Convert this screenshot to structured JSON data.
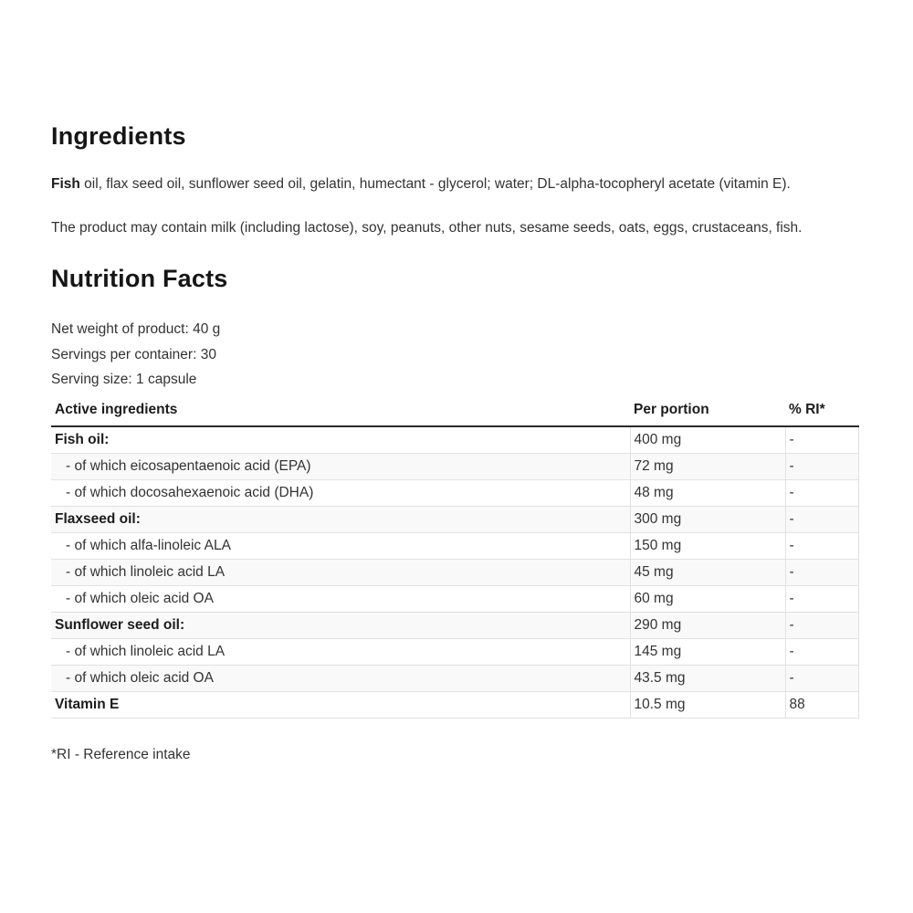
{
  "ingredients": {
    "title": "Ingredients",
    "composition_lead": "Fish",
    "composition_rest": " oil, flax seed oil, sunflower seed oil, gelatin, humectant - glycerol; water; DL-alpha-tocopheryl acetate (vitamin E).",
    "allergens": "The product may contain milk (including lactose), soy, peanuts, other nuts, sesame seeds, oats, eggs, crustaceans, fish."
  },
  "nutrition": {
    "title": "Nutrition Facts",
    "net_weight": "Net weight of product: 40 g",
    "servings_per_container": "Servings per container: 30",
    "serving_size": "Serving size: 1 capsule",
    "table": {
      "headers": [
        "Active ingredients",
        "Per portion",
        "% RI*"
      ],
      "rows": [
        {
          "name": "Fish oil:",
          "per_portion": "400 mg",
          "ri": "-"
        },
        {
          "name": "- of which eicosapentaenoic acid (EPA)",
          "per_portion": "72 mg",
          "ri": "-"
        },
        {
          "name": "- of which docosahexaenoic acid (DHA)",
          "per_portion": "48 mg",
          "ri": "-"
        },
        {
          "name": "Flaxseed oil:",
          "per_portion": "300 mg",
          "ri": "-"
        },
        {
          "name": "- of which alfa-linoleic ALA",
          "per_portion": "150 mg",
          "ri": "-"
        },
        {
          "name": "- of which linoleic acid LA",
          "per_portion": "45 mg",
          "ri": "-"
        },
        {
          "name": "- of which oleic acid OA",
          "per_portion": "60 mg",
          "ri": "-"
        },
        {
          "name": "Sunflower seed oil:",
          "per_portion": "290 mg",
          "ri": "-"
        },
        {
          "name": "- of which linoleic acid LA",
          "per_portion": "145 mg",
          "ri": "-"
        },
        {
          "name": "- of which oleic acid OA",
          "per_portion": "43.5 mg",
          "ri": "-"
        },
        {
          "name": "Vitamin E",
          "per_portion": "10.5 mg",
          "ri": "88"
        }
      ]
    },
    "footnote": "*RI - Reference intake"
  },
  "colors": {
    "background": "#ffffff",
    "text": "#333333",
    "heading": "#161616",
    "row_stripe": "#f9f9f9",
    "row_border": "#e2e2e2",
    "header_border": "#2a2a2a"
  }
}
